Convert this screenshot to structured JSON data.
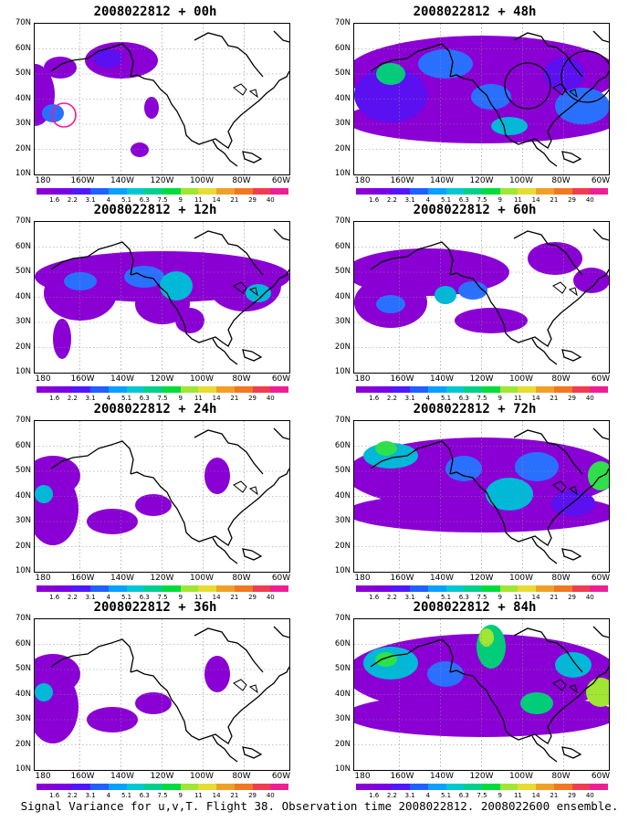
{
  "caption": "Signal Variance for u,v,T. Flight 38. Observation time 2008022812. 2008022600 ensemble.",
  "y_ticks": [
    "70N",
    "60N",
    "50N",
    "40N",
    "30N",
    "20N",
    "10N"
  ],
  "x_ticks": [
    "180",
    "160W",
    "140W",
    "120W",
    "100W",
    "80W",
    "60W"
  ],
  "colorbar_levels": [
    "1.6",
    "2.2",
    "3.1",
    "4",
    "5.1",
    "6.3",
    "7.5",
    "9",
    "11",
    "14",
    "21",
    "29",
    "40"
  ],
  "colorbar_colors": [
    "#8a00d4",
    "#7a00e6",
    "#5018ff",
    "#2060ff",
    "#0aa0ff",
    "#00c8d2",
    "#00d08c",
    "#00dc3c",
    "#a0e632",
    "#e6dc32",
    "#f0a028",
    "#f07820",
    "#f03c50",
    "#f01e96"
  ],
  "panels": [
    {
      "title": "2008022812 + 00h",
      "level": 0
    },
    {
      "title": "2008022812 + 48h",
      "level": 3
    },
    {
      "title": "2008022812 + 12h",
      "level": 1
    },
    {
      "title": "2008022812 + 60h",
      "level": 4
    },
    {
      "title": "2008022812 + 24h",
      "level": 2
    },
    {
      "title": "2008022812 + 72h",
      "level": 5
    },
    {
      "title": "2008022812 + 36h",
      "level": 2
    },
    {
      "title": "2008022812 + 84h",
      "level": 6
    }
  ]
}
